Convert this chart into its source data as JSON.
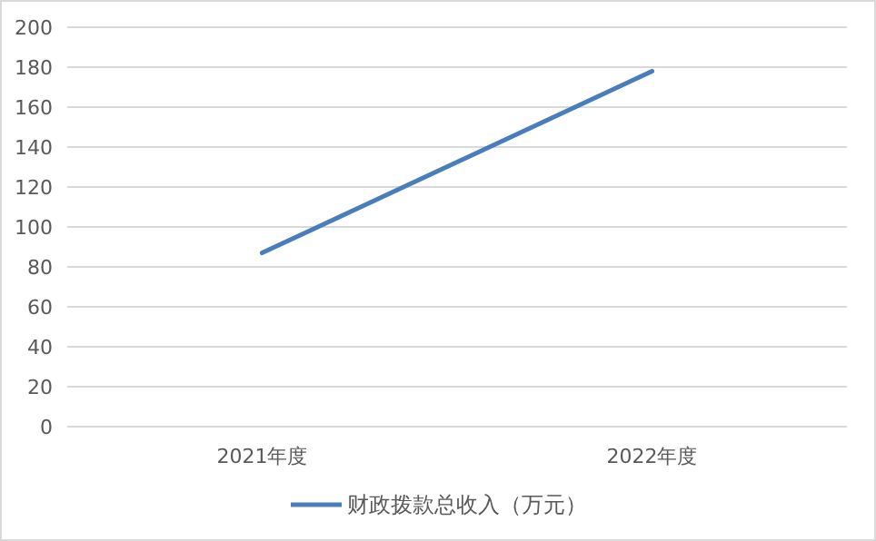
{
  "chart_data": {
    "type": "line",
    "categories": [
      "2021年度",
      "2022年度"
    ],
    "series": [
      {
        "name": "财政拨款总收入（万元）",
        "color": "#4a7ebb",
        "values": [
          87,
          178
        ]
      }
    ],
    "ylim": [
      0,
      200
    ],
    "yticks": [
      0,
      20,
      40,
      60,
      80,
      100,
      120,
      140,
      160,
      180,
      200
    ],
    "grid": "y",
    "legend": "bottom",
    "marker": "none",
    "line_style": "solid"
  }
}
